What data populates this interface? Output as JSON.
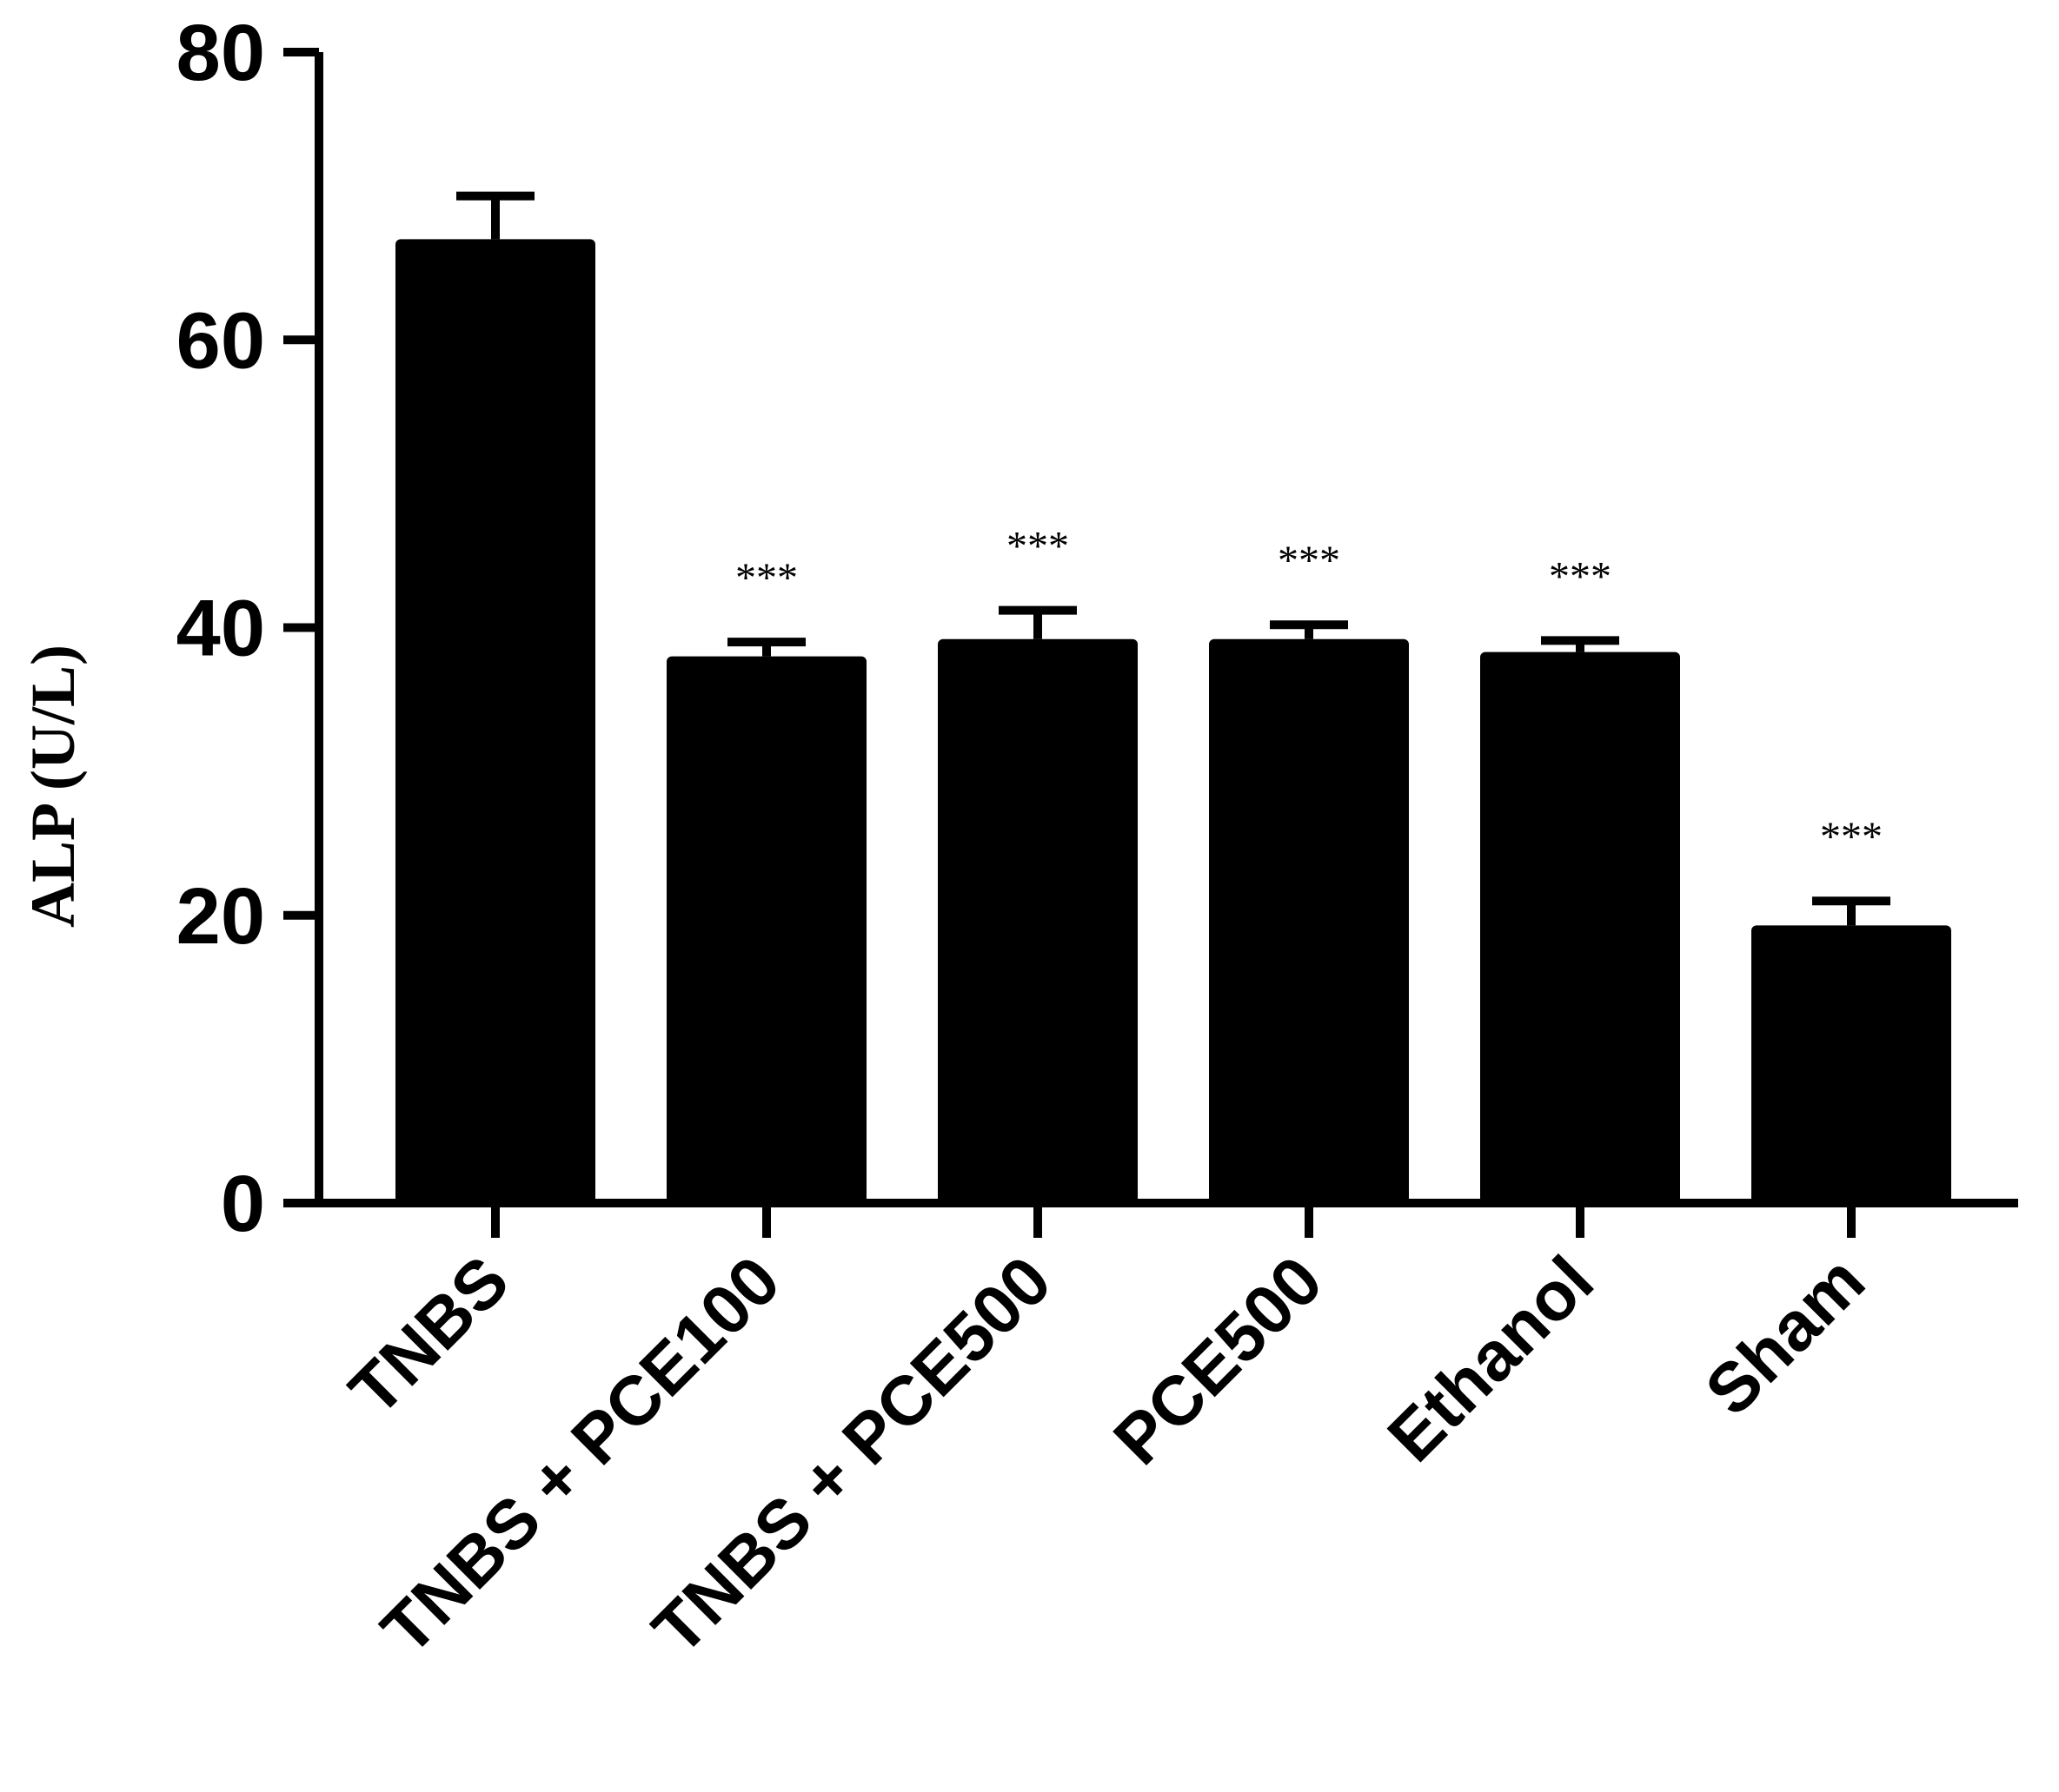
{
  "chart_data": {
    "type": "bar",
    "title": "",
    "xlabel": "",
    "ylabel": "ALP (U/L)",
    "ylim": [
      0,
      80
    ],
    "yticks": [
      "0",
      "20",
      "40",
      "60",
      "80"
    ],
    "categories": [
      "TNBS",
      "TNBS + PCE100",
      "TNBS + PCE500",
      "PCE500",
      "Ethanol",
      "Sham"
    ],
    "values": [
      67,
      38,
      39.2,
      39.2,
      38.3,
      19.3
    ],
    "error": [
      3,
      1,
      2,
      1,
      0.8,
      1.7
    ],
    "significance": [
      "",
      "***",
      "***",
      "***",
      "***",
      "***"
    ],
    "bar_color": "#000000",
    "grid": false
  }
}
